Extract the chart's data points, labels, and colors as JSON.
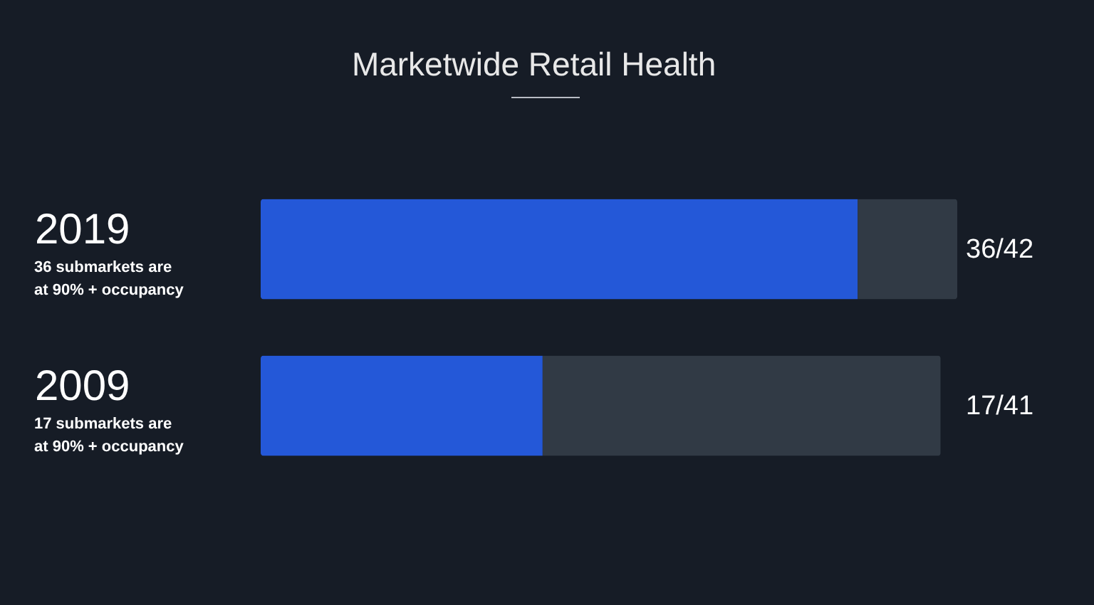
{
  "chart_data": {
    "type": "bar",
    "orientation": "horizontal",
    "stacked": true,
    "title": "Marketwide Retail Health",
    "categories": [
      "2019",
      "2009"
    ],
    "series": [
      {
        "color": "#2458d8",
        "values": [
          36,
          17
        ],
        "value_labels": [
          "36/42",
          "17/41"
        ]
      },
      {
        "color": "#313a45",
        "values": [
          6,
          24
        ]
      }
    ],
    "xlim": [
      0,
      42
    ],
    "tick_labels": "y",
    "annotations": [
      "36 submarkets are\nat 90% + occupancy",
      "17 submarkets are\nat 90% + occupancy"
    ]
  }
}
